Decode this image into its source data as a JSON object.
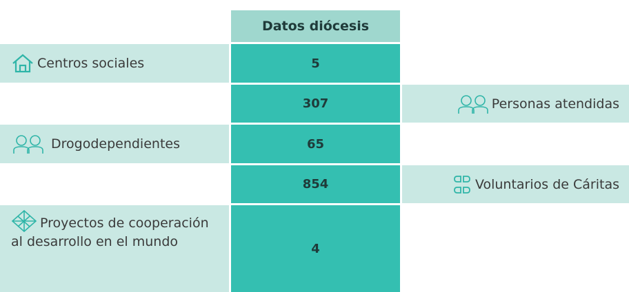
{
  "header": {
    "title": "Datos diócesis"
  },
  "rows": [
    {
      "left": "Centros sociales",
      "value": 5
    },
    {
      "value": 307,
      "right": "Personas atendidas"
    },
    {
      "left": "Drogodependientes",
      "value": 65
    },
    {
      "value": 854,
      "right": "Voluntarios de Cáritas"
    },
    {
      "left": "Proyectos de cooperación al desarrollo en el mundo",
      "value": 4
    }
  ]
}
